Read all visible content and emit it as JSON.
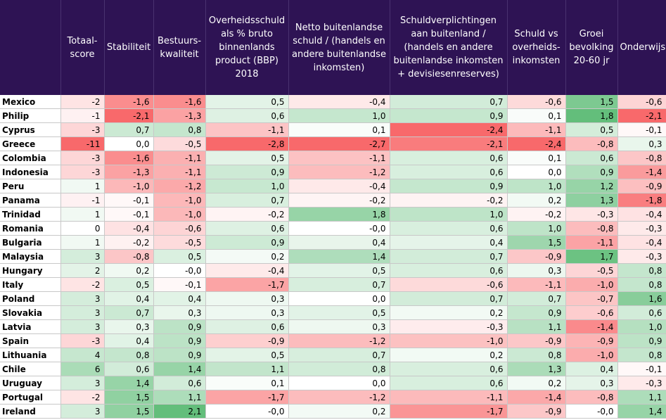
{
  "chart_data": {
    "type": "table",
    "columns": [
      "",
      "Totaal-score",
      "Stabiliteit",
      "Bestuurs-kwaliteit",
      "Overheidsschuld als % bruto binnenlands product (BBP) 2018",
      "Netto buitenlandse schuld / (handels en andere buitenlandse inkomsten)",
      "Schuldverplichtingen aan buitenland / (handels en andere buitenlandse inkomsten + devisiesenreserves)",
      "Schuld vs overheids-inkomsten",
      "Groei bevolking 20-60 jr",
      "Onderwijs"
    ],
    "rows": [
      {
        "country": "Mexico",
        "values": [
          "-2",
          "-1,6",
          "-1,6",
          "0,5",
          "-0,4",
          "0,7",
          "-0,6",
          "1,5",
          "-0,6"
        ]
      },
      {
        "country": "Philip",
        "values": [
          "-1",
          "-2,1",
          "-1,3",
          "0,6",
          "1,0",
          "0,9",
          "0,1",
          "1,8",
          "-2,1"
        ]
      },
      {
        "country": "Cyprus",
        "values": [
          "-3",
          "0,7",
          "0,8",
          "-1,1",
          "0,1",
          "-2,4",
          "-1,1",
          "0,5",
          "-0,1"
        ]
      },
      {
        "country": "Greece",
        "values": [
          "-11",
          "0,0",
          "-0,5",
          "-2,8",
          "-2,7",
          "-2,1",
          "-2,4",
          "-0,8",
          "0,3"
        ]
      },
      {
        "country": "Colombia",
        "values": [
          "-3",
          "-1,6",
          "-1,1",
          "0,5",
          "-1,1",
          "0,6",
          "0,1",
          "0,6",
          "-0,8"
        ]
      },
      {
        "country": "Indonesia",
        "values": [
          "-3",
          "-1,3",
          "-1,1",
          "0,9",
          "-1,2",
          "0,6",
          "0,0",
          "0,9",
          "-1,4"
        ]
      },
      {
        "country": "Peru",
        "values": [
          "1",
          "-1,0",
          "-1,2",
          "1,0",
          "-0,4",
          "0,9",
          "1,0",
          "1,2",
          "-0,9"
        ]
      },
      {
        "country": "Panama",
        "values": [
          "-1",
          "-0,1",
          "-1,0",
          "0,7",
          "-0,2",
          "-0,2",
          "0,2",
          "1,3",
          "-1,8"
        ]
      },
      {
        "country": "Trinidad",
        "values": [
          "1",
          "-0,1",
          "-1,0",
          "-0,2",
          "1,8",
          "1,0",
          "-0,2",
          "-0,3",
          "-0,4"
        ]
      },
      {
        "country": "Romania",
        "values": [
          "0",
          "-0,4",
          "-0,6",
          "0,6",
          "-0,0",
          "0,6",
          "1,0",
          "-0,8",
          "-0,3"
        ]
      },
      {
        "country": "Bulgaria",
        "values": [
          "1",
          "-0,2",
          "-0,5",
          "0,9",
          "0,4",
          "0,4",
          "1,5",
          "-1,1",
          "-0,4"
        ]
      },
      {
        "country": "Malaysia",
        "values": [
          "3",
          "-0,8",
          "0,5",
          "0,2",
          "1,4",
          "0,7",
          "-0,9",
          "1,7",
          "-0,3"
        ]
      },
      {
        "country": "Hungary",
        "values": [
          "2",
          "0,2",
          "-0,0",
          "-0,4",
          "0,5",
          "0,6",
          "0,3",
          "-0,5",
          "0,8"
        ]
      },
      {
        "country": "Italy",
        "values": [
          "-2",
          "0,5",
          "-0,1",
          "-1,7",
          "0,7",
          "-0,6",
          "-1,1",
          "-1,0",
          "0,8"
        ]
      },
      {
        "country": "Poland",
        "values": [
          "3",
          "0,4",
          "0,4",
          "0,3",
          "0,0",
          "0,7",
          "0,7",
          "-0,7",
          "1,6"
        ]
      },
      {
        "country": "Slovakia",
        "values": [
          "3",
          "0,7",
          "0,3",
          "0,3",
          "0,5",
          "0,2",
          "0,9",
          "-0,6",
          "0,6"
        ]
      },
      {
        "country": "Latvia",
        "values": [
          "3",
          "0,3",
          "0,9",
          "0,6",
          "0,3",
          "-0,3",
          "1,1",
          "-1,4",
          "1,0"
        ]
      },
      {
        "country": "Spain",
        "values": [
          "-3",
          "0,4",
          "0,9",
          "-0,9",
          "-1,2",
          "-1,0",
          "-0,9",
          "-0,9",
          "0,9"
        ]
      },
      {
        "country": "Lithuania",
        "values": [
          "4",
          "0,8",
          "0,9",
          "0,5",
          "0,7",
          "0,2",
          "0,8",
          "-1,0",
          "0,8"
        ]
      },
      {
        "country": "Chile",
        "values": [
          "6",
          "0,6",
          "1,4",
          "1,1",
          "0,8",
          "0,6",
          "1,3",
          "0,4",
          "-0,1"
        ]
      },
      {
        "country": "Uruguay",
        "values": [
          "3",
          "1,4",
          "0,6",
          "0,1",
          "0,0",
          "0,6",
          "0,2",
          "0,3",
          "-0,3"
        ]
      },
      {
        "country": "Portugal",
        "values": [
          "-2",
          "1,5",
          "1,1",
          "-1,7",
          "-1,2",
          "-1,1",
          "-1,4",
          "-0,8",
          "1,1"
        ]
      },
      {
        "country": "Ireland",
        "values": [
          "3",
          "1,5",
          "2,1",
          "-0,0",
          "0,2",
          "-1,7",
          "-0,9",
          "-0,0",
          "1,4"
        ]
      }
    ],
    "color_scale": {
      "negative": "#f8696b",
      "neutral": "#ffffff",
      "positive": "#63be7b"
    }
  }
}
